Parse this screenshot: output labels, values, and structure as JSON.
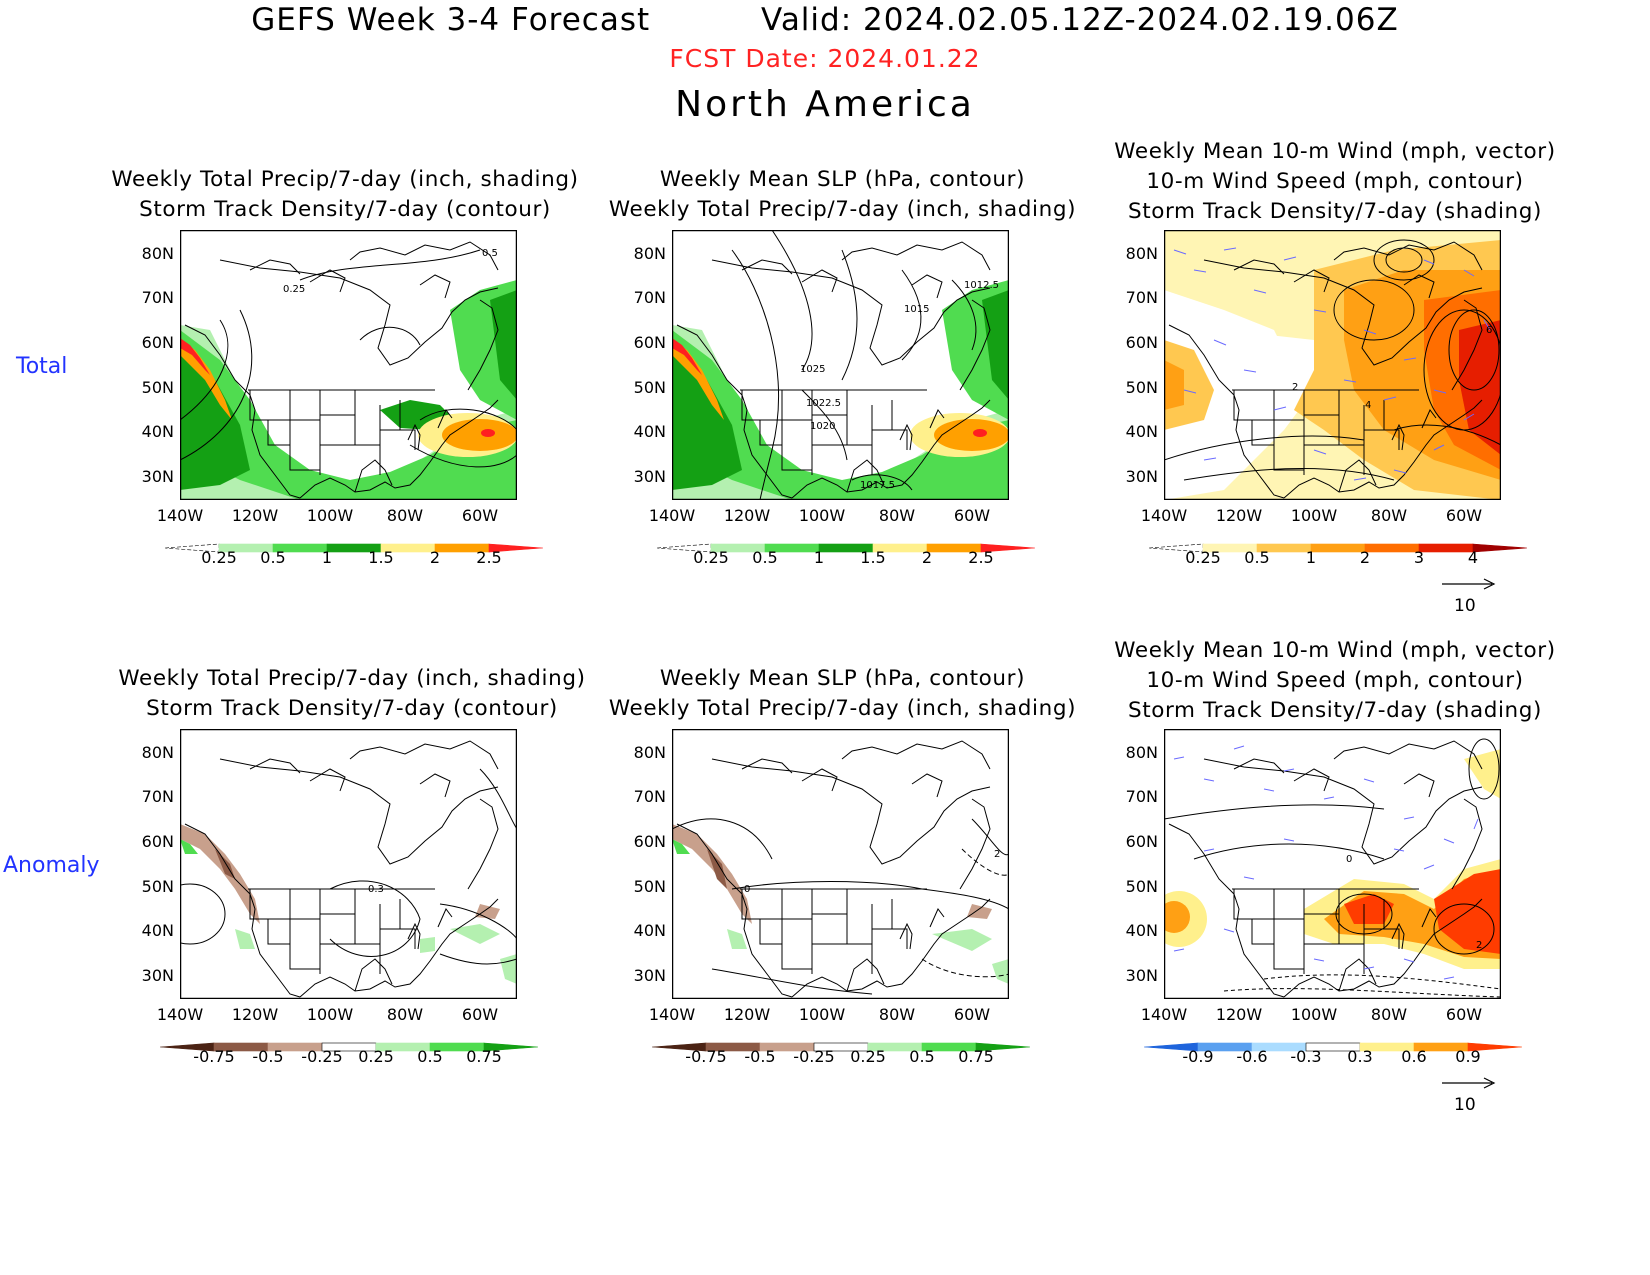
{
  "header": {
    "title": "GEFS Week 3-4 Forecast",
    "valid": "Valid: 2024.02.05.12Z-2024.02.19.06Z",
    "fcst_date": "FCST Date: 2024.01.22",
    "region": "North America"
  },
  "row_labels": {
    "total": "Total",
    "anomaly": "Anomaly"
  },
  "panel_titles": {
    "precip_storm": [
      "Weekly Total Precip/7-day (inch, shading)",
      "Storm Track Density/7-day (contour)"
    ],
    "slp_precip": [
      "Weekly Mean SLP (hPa, contour)",
      "Weekly Total Precip/7-day (inch, shading)"
    ],
    "wind_storm": [
      "Weekly Mean 10-m Wind (mph, vector)",
      "10-m Wind Speed (mph, contour)",
      "Storm Track Density/7-day (shading)"
    ]
  },
  "lat_labels": [
    "80N",
    "70N",
    "60N",
    "50N",
    "40N",
    "30N"
  ],
  "lon_labels": [
    "140W",
    "120W",
    "100W",
    "80W",
    "60W"
  ],
  "contour_labels": {
    "precip_total": [
      "0.5",
      "0.25"
    ],
    "slp_total": [
      "1012.5",
      "1015",
      "1025",
      "1022.5",
      "1020",
      "1017.5"
    ],
    "wind_total": [
      "6",
      "4",
      "2"
    ],
    "precip_anom": [
      "0.3"
    ],
    "slp_anom": [
      "2",
      "0"
    ],
    "wind_anom": [
      "0",
      "2"
    ]
  },
  "colorbars": {
    "precip_total": {
      "ticks": [
        "0.25",
        "0.5",
        "1",
        "1.5",
        "2",
        "2.5"
      ],
      "colors": [
        "#ffffff",
        "#b4f0b0",
        "#50dc50",
        "#14a014",
        "#fff08c",
        "#ffa000",
        "#ff2020"
      ]
    },
    "storm_total": {
      "ticks": [
        "0.25",
        "0.5",
        "1",
        "2",
        "3",
        "4"
      ],
      "colors": [
        "#ffffff",
        "#fff5b4",
        "#ffc850",
        "#ffa014",
        "#ff6e00",
        "#e61e00",
        "#a00000"
      ]
    },
    "precip_anom": {
      "ticks": [
        "-0.75",
        "-0.5",
        "-0.25",
        "0.25",
        "0.5",
        "0.75"
      ],
      "colors": [
        "#4b2314",
        "#8c5a46",
        "#c8a08c",
        "#ffffff",
        "#b4f0b0",
        "#50dc50",
        "#14a014"
      ]
    },
    "storm_anom": {
      "ticks": [
        "-0.9",
        "-0.6",
        "-0.3",
        "0.3",
        "0.6",
        "0.9"
      ],
      "colors": [
        "#1e64dc",
        "#5aa0f0",
        "#aadcff",
        "#ffffff",
        "#fff08c",
        "#ffa014",
        "#ff3c00"
      ]
    }
  },
  "vector_reference": "10"
}
